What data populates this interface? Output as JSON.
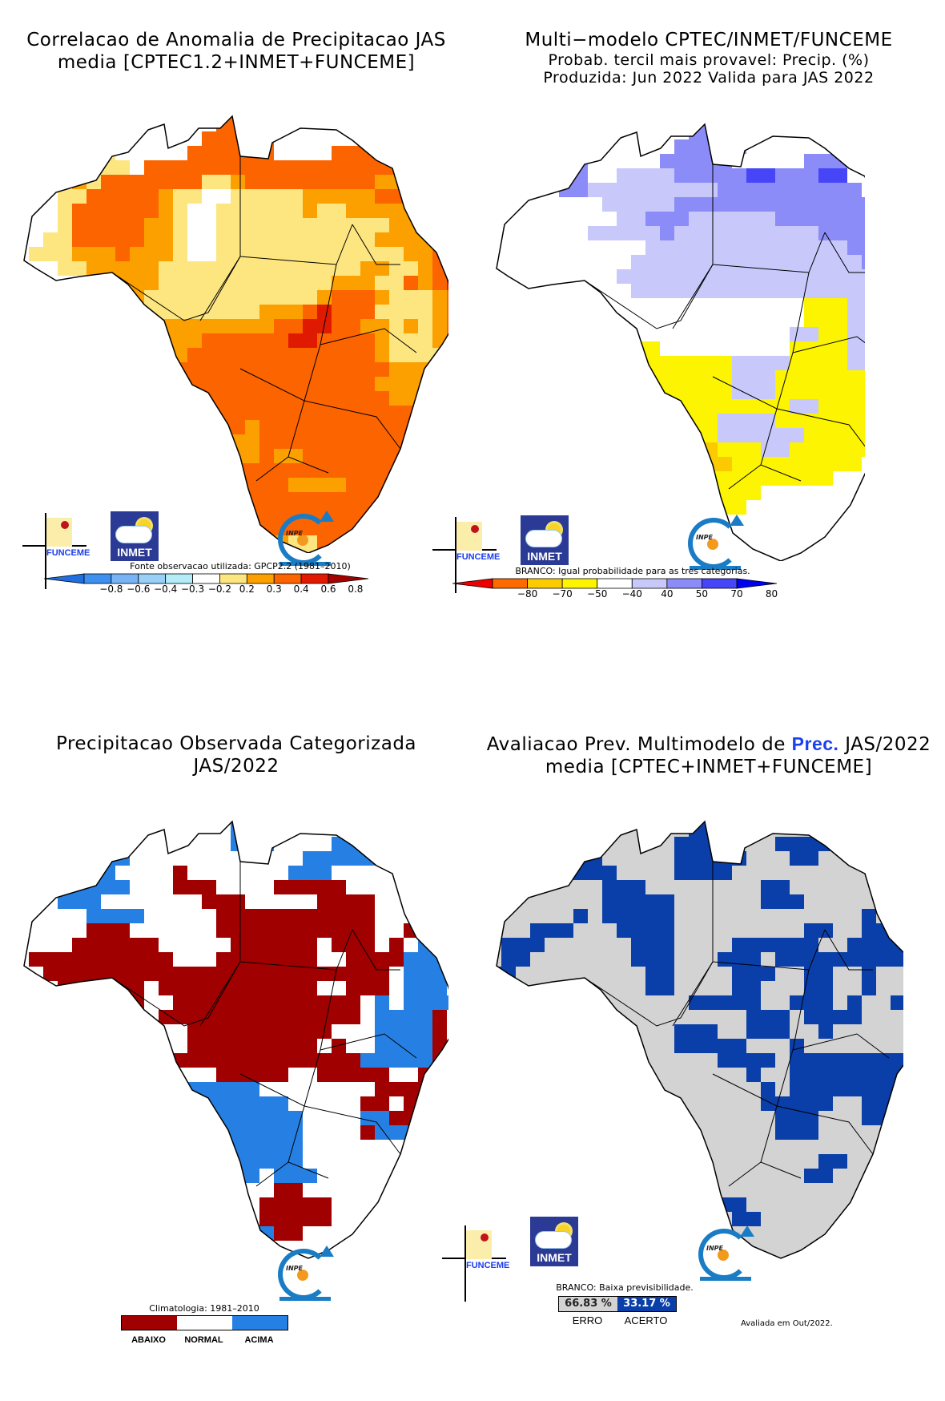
{
  "panels": [
    {
      "id": "correlation",
      "title_lines": [
        "Correlacao de Anomalia de Precipitacao JAS",
        "media [CPTEC1.2+INMET+FUNCEME]"
      ],
      "source_note": "Fonte observacao utilizada: GPCP2.2 (1981–2010)",
      "colorbar": {
        "ticks": [
          "−0.8",
          "−0.6",
          "−0.4",
          "−0.3",
          "−0.2",
          "0.2",
          "0.3",
          "0.4",
          "0.6",
          "0.8"
        ],
        "colors": [
          "#1f6fe0",
          "#3d8ff0",
          "#78b4f5",
          "#98d0f8",
          "#b4ecf8",
          "#ffffff",
          "#fde680",
          "#fca000",
          "#fc6400",
          "#e01a00",
          "#a50000"
        ]
      }
    },
    {
      "id": "forecast",
      "title_lines": [
        "Multi−modelo CPTEC/INMET/FUNCEME",
        "Probab. tercil mais provavel: Precip. (%)",
        "Produzida: Jun 2022  Valida para JAS 2022"
      ],
      "source_note": "BRANCO: Igual probabilidade para as tres categorias.",
      "colorbar": {
        "ticks": [
          "−80",
          "−70",
          "−50",
          "−40",
          "40",
          "50",
          "70",
          "80"
        ],
        "colors": [
          "#ee0000",
          "#fc6a00",
          "#fcca00",
          "#fcf400",
          "#ffffff",
          "#c8c8fa",
          "#8c8cf8",
          "#4646f8",
          "#0000f0"
        ]
      }
    },
    {
      "id": "observed",
      "title_lines": [
        "Precipitacao Observada Categorizada",
        "JAS/2022"
      ],
      "source_note": "Climatologia:  1981–2010",
      "categories": [
        {
          "label": "ABAIXO",
          "color": "#a00000"
        },
        {
          "label": "NORMAL",
          "color": "#ffffff"
        },
        {
          "label": "ACIMA",
          "color": "#2680e4"
        }
      ]
    },
    {
      "id": "evaluation",
      "title_prefix": "Avaliacao Prev. Multimodelo de ",
      "title_highlight": "Prec.",
      "title_suffix": " JAS/2022",
      "title_line2": "media [CPTEC+INMET+FUNCEME]",
      "source_note": "BRANCO: Baixa previsibilidade.",
      "scores": [
        {
          "value": "66.83 %",
          "label": "ERRO",
          "color": "#d3d3d3"
        },
        {
          "value": "33.17 %",
          "label": "ACERTO",
          "color": "#0a3ea8"
        }
      ],
      "footer": "Avaliada em Out/2022."
    }
  ],
  "logos": {
    "funceme": "FUNCEME",
    "inmet": "INMET",
    "inpe": "INPE"
  },
  "chart_data": [
    {
      "type": "heatmap",
      "title": "Correlacao de Anomalia de Precipitacao JAS media [CPTEC1.2+INMET+FUNCEME]",
      "legend_levels": [
        -0.8,
        -0.6,
        -0.4,
        -0.3,
        -0.2,
        0.2,
        0.3,
        0.4,
        0.6,
        0.8
      ],
      "grid": "palette_index",
      "rows": [
        "0000000000000000990000000000000",
        "0000000000000088990000000000000",
        "0000000000000888880000000000000",
        "0000066000008888880000888000000",
        "0000766608888888888888888880000",
        "0000768888888667888888888778000",
        "0006688888766006666677777887700",
        "0006888888760066666676677777888000",
        "0006888887760066666666666677887999",
        "0066888887760066666666666777789999",
        "0666777877760066666666666667789999",
        "0006677777666666666666667766789998",
        "0000066777666666666666777668789988",
        "0000000776666666666667888766678888",
        "0000000666666666677789888666678888",
        "0000000667777777778899887767678888",
        "0000000006777888888998888766678888",
        "0000000000778888888888888766668888",
        "0000000000088888888888888877788888",
        "0000000000088888888888888777788888",
        "0000000000008888888888888877888880",
        "0000000000008888888888888888888800",
        "0000000000008888788888888888888800",
        "0000000000008887788888888888888000",
        "0000000000008887787788888888870000",
        "0000000000000888888888888888800000",
        "0000000000000888888777788888000000",
        "0000000000000088888888888888000000",
        "0000000000000088888888888000000000",
        "0000000000000008888888880000000000",
        "0000000000000006677668800000000000",
        "0000000000000066666666000000000000",
        "0000000000000066666666000000000000"
      ]
    },
    {
      "type": "heatmap",
      "title": "Multi-modelo CPTEC/INMET/FUNCEME Probab. tercil mais provavel: Precip. (%)",
      "legend_levels": [
        -80,
        -70,
        -50,
        -40,
        40,
        50,
        70,
        80
      ],
      "grid": "palette_index",
      "rows": [
        "0000000000000000780000000000000",
        "0000000000000066780000000000000",
        "0000000000000666560000000000000",
        "0000055000005556600000666000000",
        "0000555004444556667766677000000",
        "0000055444444444666666666600000",
        "0000000044444555555555666660000",
        "0000000004455544444455556666666",
        "0000000444445444444444455566666",
        "0000000000044444444444444556666",
        "0000000000444444444444444455666",
        "0000000004444444444444444446666",
        "0000000000444444444444444446666",
        "0000000000000000000000333444666",
        "0000000000000000000000333444466",
        "0000000000000000000004433444446",
        "0000000003330000000003333444440",
        "0000000000333333344443333444440",
        "0000000000033333344433333333440",
        "0000000000033333344433333333400",
        "0000000000023333333334433333300",
        "0000000000003333444433333333300",
        "0000000000003333444444333334400",
        "0000000000003322333443333330000",
        "0000000000000332233333333300000",
        "0000000000000333333333330000000",
        "0000000000000033333000000000000",
        "0000000000000003330000000000000",
        "0000000000000000000000000000000",
        "0000000000000000300000000000000"
      ]
    },
    {
      "type": "heatmap",
      "title": "Precipitacao Observada Categorizada JAS/2022",
      "categories": [
        "ABAIXO",
        "NORMAL",
        "ACIMA"
      ],
      "grid": "category_index (1=ABAIXO,2=NORMAL,3=ACIMA)",
      "rows": [
        "2222222222222222332222222222222",
        "2222222222222223333222222333222",
        "2222223222222223232222333332222",
        "2222233322222222222233333333222",
        "2222333222212222222333222223222",
        "2223333322211122221111122222222",
        "2223332222222111222221111222222",
        "2222233332222211111111111222332",
        "2222211122222211111111111221222",
        "2222111111222221111112111212322",
        "2111111111122211111112211113332",
        "2211111111111111111111111123333",
        "2221111112111111111112211123332",
        "2222211112211111111111112323333",
        "2222221122111111111111112333312",
        "2222222113221111111111222333312",
        "2222222212221111111112122333312",
        "2222222222211111111111113333312",
        "2222222222222211111221111122112",
        "2222222222223333322222222111112",
        "2222222222223333333222221121112",
        "2222222222223333333322223311112",
        "2222222222223333333322221333322",
        "2222222222222333333322222222222",
        "2222222222222233333322222222222",
        "2222222222222223323332222222222",
        "2222222222222222221122222222222",
        "2222222222222222211111222222222",
        "2222222222222222211111222222222",
        "2222222222222222231122222222222"
      ]
    },
    {
      "type": "heatmap",
      "title": "Avaliacao Prev. Multimodelo de Prec. JAS/2022 media [CPTEC+INMET+FUNCEME]",
      "categories": [
        "ERRO",
        "ACERTO"
      ],
      "values_percent": {
        "ERRO": 66.83,
        "ACERTO": 33.17
      },
      "grid": "1=ACERTO,0=ERRO",
      "rows": [
        "0000000000000000110000000000000",
        "0000000000000011110000011000000",
        "0000001100000111000011110000000",
        "0000011100000111110001100000000",
        "0000001110000111100000000000000",
        "0000000011100000000110000000000",
        "0000000011111000000111000000000",
        "0000001011111000000000000010010",
        "0001110001111000000000110011100",
        "0111000000111000011111100111101",
        "0110000000111000111011111111101",
        "1100000000011000011100110010010",
        "1100000000011000011000110010010",
        "0000000000000011111001110100100",
        "0000000000000000001110111100000",
        "0000000000000111001110010000000",
        "0000000000000111110001000000000",
        "0000000000000000111101111111100",
        "0000000000000000001001111111100",
        "0000000000000000000101111111100",
        "0000000000000000000111110011100",
        "0000000000000000000011100011000",
        "0000000000000000000011100000000",
        "0000000000000000000000000000000",
        "0000000000000000000000011000000",
        "0000000000000000000000110000000",
        "0000000000000000000000000000000",
        "0000000000000000110000000000000",
        "0000000000000000011000000000000",
        "0000000000000001100000000000000"
      ]
    }
  ]
}
